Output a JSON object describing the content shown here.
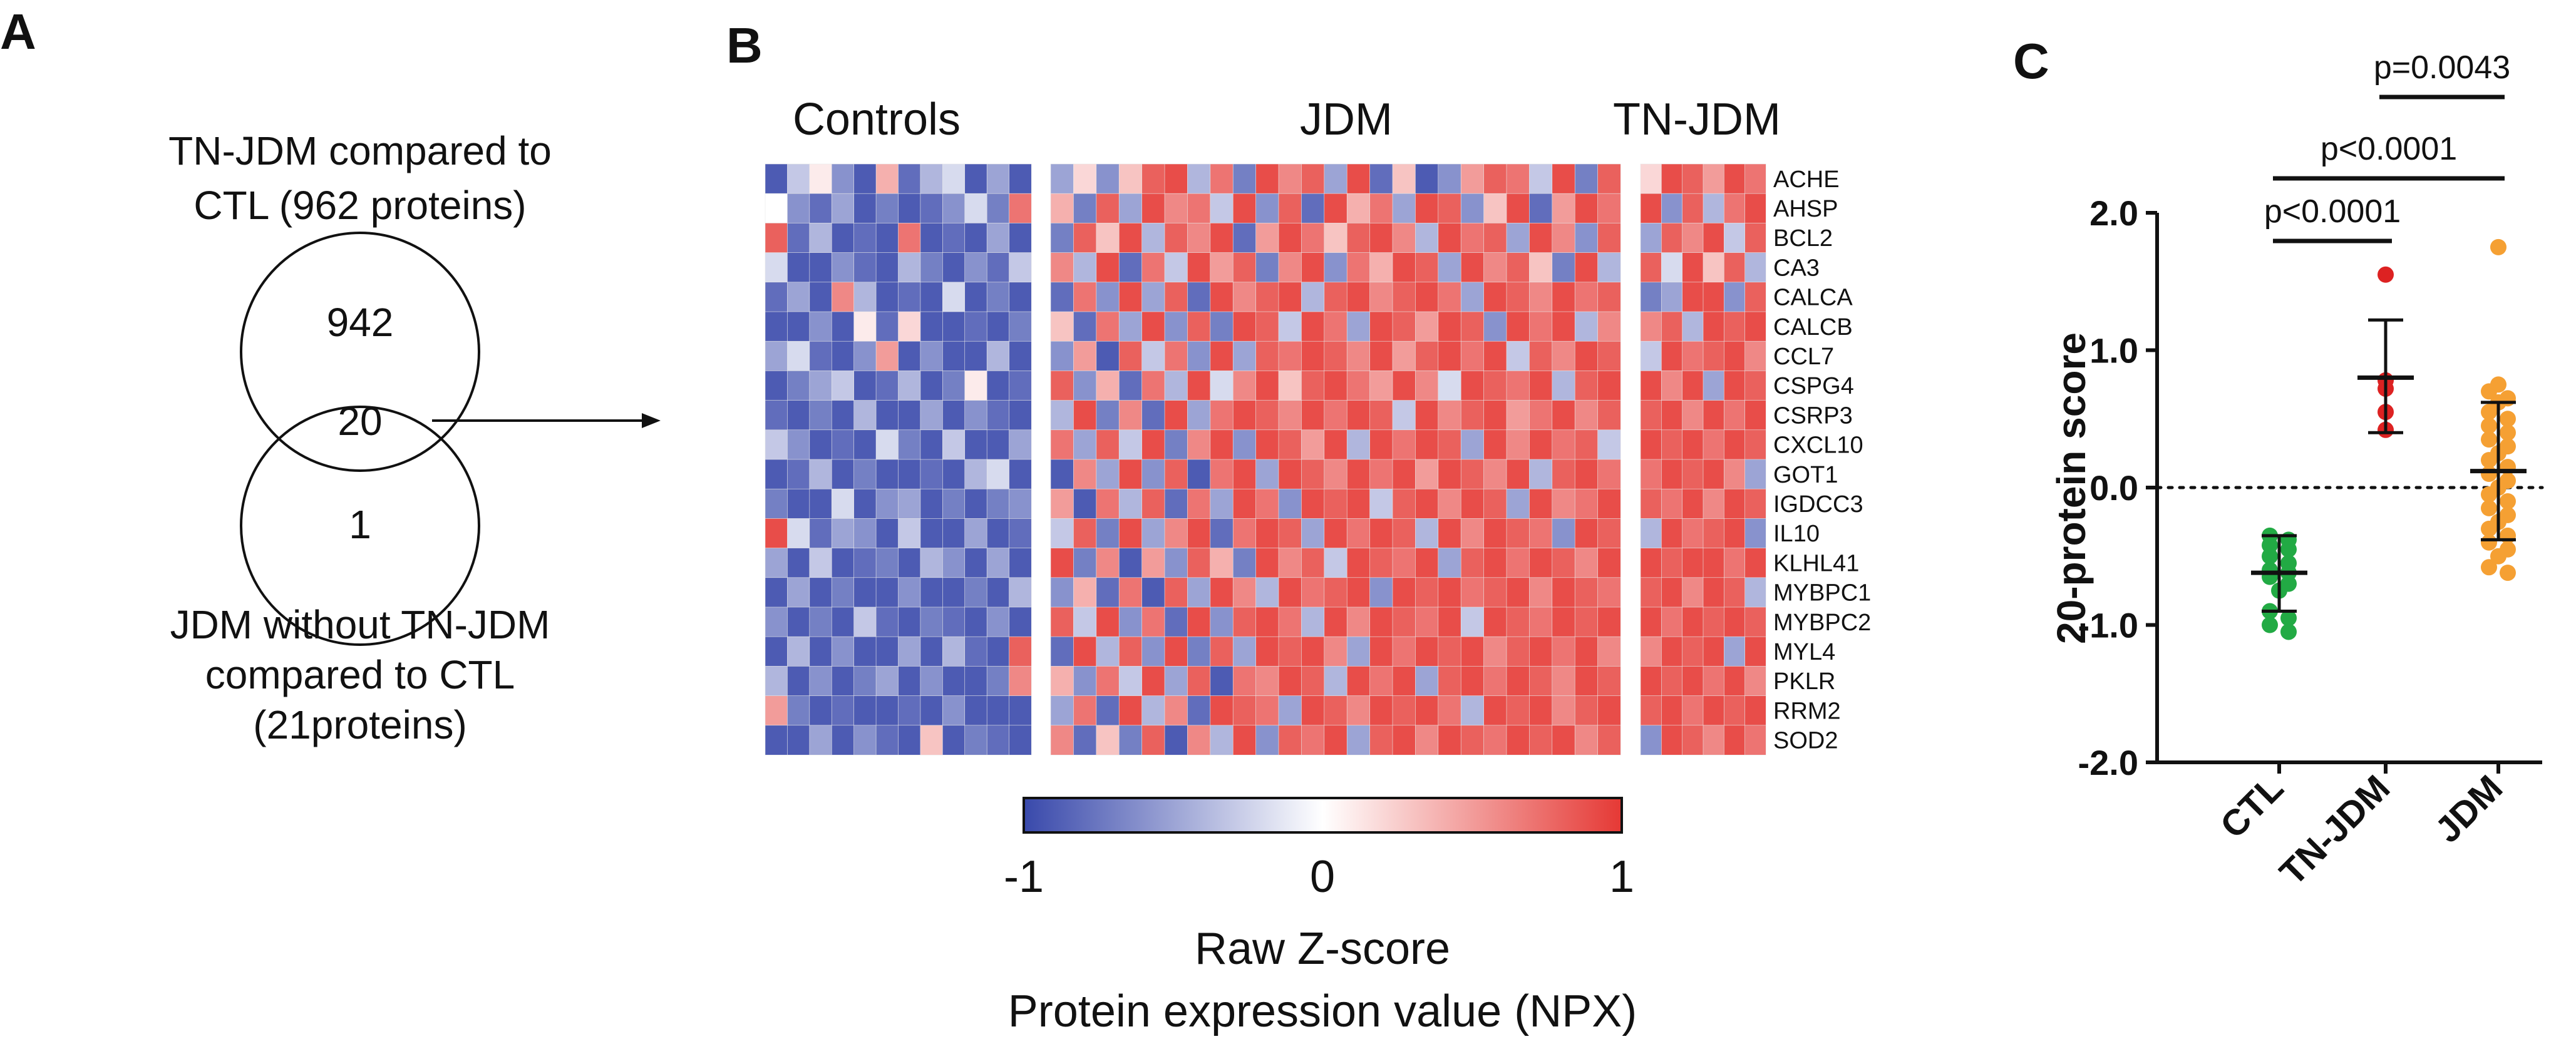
{
  "panels": {
    "a": "A",
    "b": "B",
    "c": "C"
  },
  "venn": {
    "top_label_line1": "TN-JDM compared to",
    "top_label_line2": "CTL (962 proteins)",
    "top_only": "942",
    "overlap": "20",
    "bottom_only": "1",
    "bottom_label_line1": "JDM without TN-JDM",
    "bottom_label_line2": "compared to CTL",
    "bottom_label_line3": "(21proteins)"
  },
  "chart_data": [
    {
      "type": "heatmap",
      "group_labels": [
        "Controls",
        "JDM",
        "TN-JDM"
      ],
      "group_columns": [
        12,
        25,
        6
      ],
      "proteins": [
        "ACHE",
        "AHSP",
        "BCL2",
        "CA3",
        "CALCA",
        "CALCB",
        "CCL7",
        "CSPG4",
        "CSRP3",
        "CXCL10",
        "GOT1",
        "IGDCC3",
        "IL10",
        "KLHL41",
        "MYBPC1",
        "MYBPC2",
        "MYL4",
        "PKLR",
        "RRM2",
        "SOD2"
      ],
      "colorbar": {
        "min": -1,
        "max": 1,
        "ticks": [
          "-1",
          "0",
          "1"
        ],
        "low_color": "#3949ab",
        "mid_color": "#ffffff",
        "high_color": "#e53935"
      },
      "xlabel_line1": "Raw Z-score",
      "xlabel_line2": "Protein expression value (NPX)",
      "values": {
        "Controls": [
          [
            -0.9,
            -0.3,
            0.1,
            -0.6,
            -0.9,
            0.4,
            -0.8,
            -0.4,
            -0.2,
            -0.9,
            -0.5,
            -0.9
          ],
          [
            0.0,
            -0.6,
            -0.8,
            -0.5,
            -0.9,
            -0.7,
            -0.9,
            -0.8,
            -0.6,
            -0.2,
            -0.7,
            0.7
          ],
          [
            0.8,
            -0.8,
            -0.4,
            -0.9,
            -0.8,
            -0.9,
            0.7,
            -0.9,
            -0.8,
            -0.9,
            -0.5,
            -0.9
          ],
          [
            -0.2,
            -0.9,
            -0.9,
            -0.6,
            -0.8,
            -0.9,
            -0.4,
            -0.7,
            -0.9,
            -0.6,
            -0.8,
            -0.3
          ],
          [
            -0.8,
            -0.5,
            -0.9,
            0.6,
            -0.4,
            -0.9,
            -0.8,
            -0.9,
            -0.2,
            -0.9,
            -0.7,
            -0.9
          ],
          [
            -0.9,
            -0.9,
            -0.6,
            -0.9,
            0.1,
            -0.8,
            0.2,
            -0.9,
            -0.9,
            -0.8,
            -0.9,
            -0.7
          ],
          [
            -0.5,
            -0.2,
            -0.8,
            -0.9,
            -0.6,
            0.5,
            -0.9,
            -0.6,
            -0.9,
            -0.9,
            -0.4,
            -0.9
          ],
          [
            -0.9,
            -0.7,
            -0.5,
            -0.3,
            -0.9,
            -0.8,
            -0.4,
            -0.9,
            -0.7,
            0.1,
            -0.9,
            -0.8
          ],
          [
            -0.8,
            -0.9,
            -0.7,
            -0.9,
            -0.4,
            -0.9,
            -0.9,
            -0.5,
            -0.9,
            -0.6,
            -0.8,
            -0.9
          ],
          [
            -0.3,
            -0.6,
            -0.9,
            -0.8,
            -0.9,
            -0.2,
            -0.7,
            -0.9,
            -0.3,
            -0.9,
            -0.9,
            -0.5
          ],
          [
            -0.9,
            -0.8,
            -0.4,
            -0.9,
            -0.7,
            -0.9,
            -0.9,
            -0.8,
            -0.9,
            -0.4,
            -0.2,
            -0.9
          ],
          [
            -0.7,
            -0.9,
            -0.9,
            -0.2,
            -0.9,
            -0.6,
            -0.5,
            -0.9,
            -0.7,
            -0.9,
            -0.7,
            -0.6
          ],
          [
            0.9,
            -0.2,
            -0.8,
            -0.5,
            -0.6,
            -0.9,
            -0.3,
            -0.9,
            -0.9,
            -0.5,
            -0.9,
            -0.8
          ],
          [
            -0.5,
            -0.9,
            -0.3,
            -0.9,
            -0.8,
            -0.7,
            -0.9,
            -0.4,
            -0.6,
            -0.9,
            -0.5,
            -0.9
          ],
          [
            -0.9,
            -0.5,
            -0.9,
            -0.7,
            -0.9,
            -0.9,
            -0.6,
            -0.9,
            -0.9,
            -0.7,
            -0.9,
            -0.4
          ],
          [
            -0.6,
            -0.9,
            -0.7,
            -0.9,
            -0.3,
            -0.8,
            -0.9,
            -0.7,
            -0.8,
            -0.9,
            -0.6,
            -0.9
          ],
          [
            -0.9,
            -0.4,
            -0.9,
            -0.6,
            -0.9,
            -0.9,
            -0.5,
            -0.9,
            -0.4,
            -0.8,
            -0.9,
            0.8
          ],
          [
            -0.4,
            -0.9,
            -0.6,
            -0.9,
            -0.7,
            -0.5,
            -0.9,
            -0.6,
            -0.9,
            -0.9,
            -0.7,
            0.6
          ],
          [
            0.5,
            -0.7,
            -0.9,
            -0.8,
            -0.9,
            -0.9,
            -0.8,
            -0.9,
            -0.6,
            -0.9,
            -0.9,
            -0.9
          ],
          [
            -0.9,
            -0.9,
            -0.5,
            -0.9,
            -0.6,
            -0.8,
            -0.9,
            0.3,
            -0.9,
            -0.7,
            -0.8,
            -0.9
          ]
        ],
        "JDM": [
          [
            -0.5,
            0.2,
            -0.6,
            0.3,
            0.8,
            0.9,
            -0.4,
            0.7,
            -0.7,
            0.9,
            0.6,
            0.8,
            -0.5,
            0.9,
            -0.8,
            0.3,
            -0.9,
            -0.6,
            0.5,
            0.8,
            0.7,
            -0.3,
            0.9,
            -0.7,
            0.8
          ],
          [
            0.4,
            -0.7,
            0.8,
            -0.5,
            0.9,
            0.6,
            0.7,
            -0.3,
            0.9,
            -0.6,
            0.8,
            -0.8,
            0.9,
            0.4,
            0.7,
            -0.5,
            0.9,
            0.8,
            -0.6,
            0.3,
            0.9,
            -0.8,
            0.5,
            0.9,
            0.7
          ],
          [
            -0.7,
            0.8,
            0.3,
            0.9,
            -0.4,
            0.8,
            0.6,
            0.9,
            -0.8,
            0.5,
            0.9,
            0.7,
            0.3,
            0.8,
            0.9,
            0.6,
            -0.4,
            0.9,
            0.7,
            0.8,
            -0.5,
            0.9,
            0.6,
            -0.6,
            0.8
          ],
          [
            0.6,
            -0.4,
            0.9,
            -0.8,
            0.7,
            -0.3,
            0.9,
            0.5,
            0.8,
            -0.7,
            0.6,
            0.9,
            -0.6,
            0.7,
            0.4,
            0.9,
            0.8,
            -0.5,
            0.9,
            0.6,
            0.8,
            0.3,
            -0.7,
            0.9,
            -0.4
          ],
          [
            -0.8,
            0.7,
            -0.6,
            0.9,
            -0.5,
            0.8,
            -0.8,
            0.9,
            0.6,
            0.8,
            0.9,
            -0.4,
            0.8,
            0.9,
            0.6,
            0.8,
            0.9,
            0.7,
            -0.5,
            0.9,
            0.8,
            0.6,
            0.9,
            0.7,
            0.8
          ],
          [
            0.3,
            -0.8,
            0.7,
            -0.5,
            0.9,
            -0.6,
            0.8,
            -0.7,
            0.9,
            0.8,
            -0.3,
            0.9,
            0.7,
            -0.5,
            0.9,
            0.8,
            0.5,
            0.9,
            0.8,
            -0.6,
            0.9,
            0.7,
            0.9,
            -0.4,
            0.6
          ],
          [
            -0.6,
            0.5,
            -0.9,
            0.8,
            -0.3,
            0.7,
            -0.6,
            0.9,
            -0.5,
            0.8,
            0.7,
            0.9,
            0.8,
            0.6,
            0.9,
            0.5,
            0.8,
            0.9,
            0.7,
            0.9,
            -0.3,
            0.8,
            0.6,
            0.9,
            0.8
          ],
          [
            0.8,
            -0.6,
            0.4,
            -0.8,
            0.7,
            -0.4,
            0.9,
            -0.2,
            0.6,
            0.9,
            0.3,
            0.8,
            0.9,
            0.7,
            0.5,
            0.9,
            0.6,
            -0.2,
            0.9,
            0.8,
            0.7,
            0.9,
            -0.4,
            0.8,
            0.9
          ],
          [
            -0.4,
            0.9,
            -0.7,
            0.6,
            -0.8,
            0.9,
            -0.5,
            0.7,
            0.9,
            0.8,
            0.6,
            0.9,
            0.7,
            0.9,
            0.8,
            -0.3,
            0.9,
            0.6,
            0.8,
            0.9,
            0.5,
            0.7,
            0.9,
            0.6,
            0.8
          ],
          [
            0.7,
            -0.5,
            0.8,
            -0.3,
            0.9,
            -0.7,
            0.6,
            0.9,
            -0.6,
            0.9,
            0.8,
            0.5,
            0.9,
            -0.4,
            0.9,
            0.7,
            0.9,
            0.8,
            -0.5,
            0.9,
            0.6,
            0.9,
            0.7,
            0.8,
            -0.3
          ],
          [
            -0.9,
            0.6,
            -0.5,
            0.9,
            -0.6,
            0.8,
            -0.9,
            0.7,
            0.9,
            -0.5,
            0.9,
            0.8,
            0.6,
            0.9,
            0.7,
            0.9,
            0.5,
            0.9,
            0.8,
            0.6,
            0.9,
            -0.4,
            0.8,
            0.9,
            0.7
          ],
          [
            0.5,
            -0.9,
            0.7,
            -0.4,
            0.8,
            -0.8,
            0.7,
            -0.5,
            0.9,
            0.7,
            -0.6,
            0.9,
            0.8,
            0.9,
            -0.3,
            0.8,
            0.9,
            0.6,
            0.9,
            0.8,
            -0.5,
            0.9,
            0.6,
            0.7,
            0.9
          ],
          [
            -0.3,
            0.8,
            -0.7,
            0.9,
            -0.5,
            0.6,
            0.9,
            -0.8,
            0.7,
            0.9,
            0.8,
            -0.5,
            0.9,
            0.7,
            0.9,
            0.8,
            -0.4,
            0.9,
            0.6,
            0.9,
            0.8,
            0.7,
            -0.6,
            0.9,
            0.8
          ],
          [
            0.9,
            -0.7,
            0.6,
            -0.9,
            0.5,
            -0.6,
            0.8,
            0.4,
            -0.7,
            0.9,
            0.6,
            0.8,
            -0.3,
            0.9,
            0.8,
            0.7,
            0.9,
            -0.5,
            0.8,
            0.9,
            0.7,
            0.9,
            0.8,
            0.6,
            0.9
          ],
          [
            -0.6,
            0.4,
            -0.8,
            0.7,
            -0.9,
            0.8,
            -0.5,
            0.9,
            0.6,
            -0.4,
            0.9,
            0.7,
            0.8,
            0.9,
            -0.6,
            0.9,
            0.8,
            0.9,
            0.7,
            0.8,
            0.9,
            0.6,
            0.9,
            0.8,
            0.7
          ],
          [
            0.8,
            -0.3,
            0.9,
            -0.6,
            0.7,
            -0.8,
            0.9,
            -0.6,
            0.8,
            0.9,
            0.7,
            -0.4,
            0.9,
            0.6,
            0.9,
            0.8,
            0.7,
            0.9,
            -0.3,
            0.9,
            0.8,
            0.7,
            0.9,
            0.8,
            0.9
          ],
          [
            -0.8,
            0.9,
            -0.4,
            0.8,
            -0.6,
            0.9,
            -0.7,
            0.8,
            -0.5,
            0.9,
            0.8,
            0.9,
            0.6,
            -0.5,
            0.9,
            0.7,
            0.9,
            0.8,
            0.9,
            0.6,
            0.8,
            0.9,
            0.7,
            0.9,
            0.6
          ],
          [
            0.4,
            -0.6,
            0.7,
            -0.3,
            0.9,
            -0.5,
            0.8,
            -0.9,
            0.7,
            0.6,
            0.9,
            0.8,
            -0.4,
            0.9,
            0.7,
            0.9,
            -0.5,
            0.8,
            0.9,
            0.7,
            0.9,
            0.8,
            0.6,
            0.9,
            0.8
          ],
          [
            -0.5,
            0.7,
            -0.8,
            0.9,
            -0.4,
            0.6,
            -0.8,
            0.9,
            0.8,
            0.7,
            -0.5,
            0.9,
            0.8,
            0.6,
            0.9,
            0.8,
            0.9,
            0.7,
            -0.4,
            0.9,
            0.8,
            0.9,
            0.6,
            0.8,
            0.9
          ],
          [
            0.6,
            -0.8,
            0.3,
            -0.7,
            0.8,
            -0.9,
            0.6,
            -0.4,
            0.9,
            -0.6,
            0.8,
            0.7,
            0.9,
            -0.5,
            0.8,
            0.9,
            0.6,
            0.9,
            0.8,
            0.7,
            0.9,
            0.8,
            0.9,
            0.6,
            0.8
          ]
        ],
        "TN-JDM": [
          [
            0.2,
            0.9,
            0.8,
            0.5,
            0.9,
            0.7
          ],
          [
            0.9,
            -0.6,
            0.8,
            -0.4,
            0.7,
            0.9
          ],
          [
            -0.5,
            0.8,
            0.6,
            0.9,
            -0.3,
            0.8
          ],
          [
            0.8,
            -0.2,
            0.9,
            0.3,
            0.8,
            -0.4
          ],
          [
            -0.7,
            -0.5,
            0.9,
            0.9,
            -0.6,
            0.8
          ],
          [
            0.6,
            0.8,
            -0.4,
            0.9,
            0.8,
            0.9
          ],
          [
            -0.3,
            0.9,
            0.7,
            0.8,
            0.9,
            0.6
          ],
          [
            0.9,
            0.6,
            0.9,
            -0.5,
            0.9,
            0.8
          ],
          [
            0.8,
            0.9,
            0.6,
            0.9,
            0.7,
            0.9
          ],
          [
            0.9,
            0.8,
            0.9,
            0.7,
            0.9,
            0.8
          ],
          [
            0.7,
            0.9,
            0.8,
            0.9,
            0.6,
            -0.5
          ],
          [
            0.8,
            0.7,
            0.9,
            0.6,
            0.9,
            0.8
          ],
          [
            -0.4,
            0.9,
            0.7,
            0.8,
            0.9,
            -0.6
          ],
          [
            0.9,
            0.8,
            0.9,
            0.9,
            0.7,
            0.9
          ],
          [
            0.8,
            0.9,
            0.6,
            0.9,
            0.8,
            -0.4
          ],
          [
            0.9,
            0.7,
            0.9,
            0.8,
            0.9,
            0.8
          ],
          [
            0.6,
            0.9,
            0.8,
            0.9,
            -0.5,
            0.9
          ],
          [
            0.9,
            0.8,
            0.9,
            0.7,
            0.9,
            0.6
          ],
          [
            0.8,
            0.9,
            0.7,
            0.9,
            0.8,
            0.9
          ],
          [
            -0.6,
            0.9,
            0.8,
            0.6,
            0.9,
            0.7
          ]
        ]
      }
    },
    {
      "type": "scatter",
      "ylabel": "20-protein score",
      "ylim": [
        -2.0,
        2.0
      ],
      "yticks": [
        "-2.0",
        "-1.0",
        "0.0",
        "1.0",
        "2.0"
      ],
      "reference_line": 0.0,
      "categories": [
        "CTL",
        "TN-JDM",
        "JDM"
      ],
      "series": [
        {
          "name": "CTL",
          "color": "#22aa44",
          "mean": -0.62,
          "sd_low": -0.9,
          "sd_high": -0.35,
          "points": [
            -0.35,
            -0.38,
            -0.42,
            -0.45,
            -0.5,
            -0.55,
            -0.6,
            -0.62,
            -0.65,
            -0.7,
            -0.75,
            -0.9,
            -0.95,
            -1.0,
            -1.05
          ]
        },
        {
          "name": "TN-JDM",
          "color": "#dd2222",
          "mean": 0.8,
          "sd_low": 0.4,
          "sd_high": 1.22,
          "points": [
            1.55,
            0.78,
            0.72,
            0.55,
            0.42
          ]
        },
        {
          "name": "JDM",
          "color": "#f5a033",
          "mean": 0.12,
          "sd_low": -0.38,
          "sd_high": 0.62,
          "points": [
            1.75,
            0.75,
            0.7,
            0.65,
            0.62,
            0.55,
            0.5,
            0.45,
            0.4,
            0.35,
            0.3,
            0.25,
            0.2,
            0.15,
            0.1,
            0.05,
            0.0,
            -0.05,
            -0.1,
            -0.15,
            -0.2,
            -0.25,
            -0.3,
            -0.35,
            -0.4,
            -0.45,
            -0.5,
            -0.58,
            -0.62
          ]
        }
      ],
      "comparisons": [
        {
          "from": "CTL",
          "to": "TN-JDM",
          "label": "p<0.0001"
        },
        {
          "from": "CTL",
          "to": "JDM",
          "label": "p<0.0001"
        },
        {
          "from": "TN-JDM",
          "to": "JDM",
          "label": "p=0.0043"
        }
      ]
    }
  ]
}
